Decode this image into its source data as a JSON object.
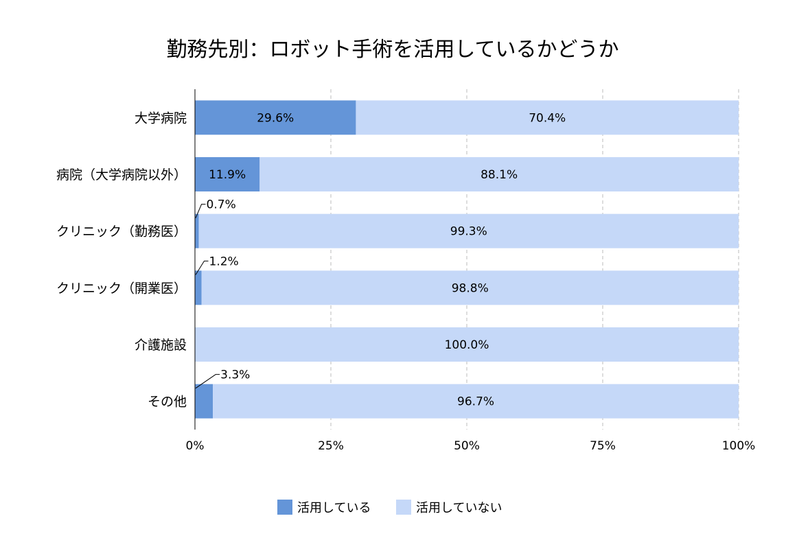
{
  "chart_data": {
    "type": "bar",
    "orientation": "horizontal",
    "stacked": "percent",
    "title": "勤務先別：ロボット手術を活用しているかどうか",
    "categories": [
      "大学病院",
      "病院（大学病院以外）",
      "クリニック（勤務医）",
      "クリニック（開業医）",
      "介護施設",
      "その他"
    ],
    "series": [
      {
        "name": "活用している",
        "color": "#6495d8",
        "values": [
          29.6,
          11.9,
          0.7,
          1.2,
          0.0,
          3.3
        ]
      },
      {
        "name": "活用していない",
        "color": "#c5d8f8",
        "values": [
          70.4,
          88.1,
          99.3,
          98.8,
          100.0,
          96.7
        ]
      }
    ],
    "data_labels": [
      [
        "29.6%",
        "11.9%",
        "0.7%",
        "1.2%",
        "",
        "3.3%"
      ],
      [
        "70.4%",
        "88.1%",
        "99.3%",
        "98.8%",
        "100.0%",
        "96.7%"
      ]
    ],
    "xlim": [
      0,
      100
    ],
    "xticks": [
      0,
      25,
      50,
      75,
      100
    ],
    "xtick_labels": [
      "0%",
      "25%",
      "50%",
      "75%",
      "100%"
    ],
    "grid": "vertical-dashed",
    "legend_position": "bottom"
  }
}
